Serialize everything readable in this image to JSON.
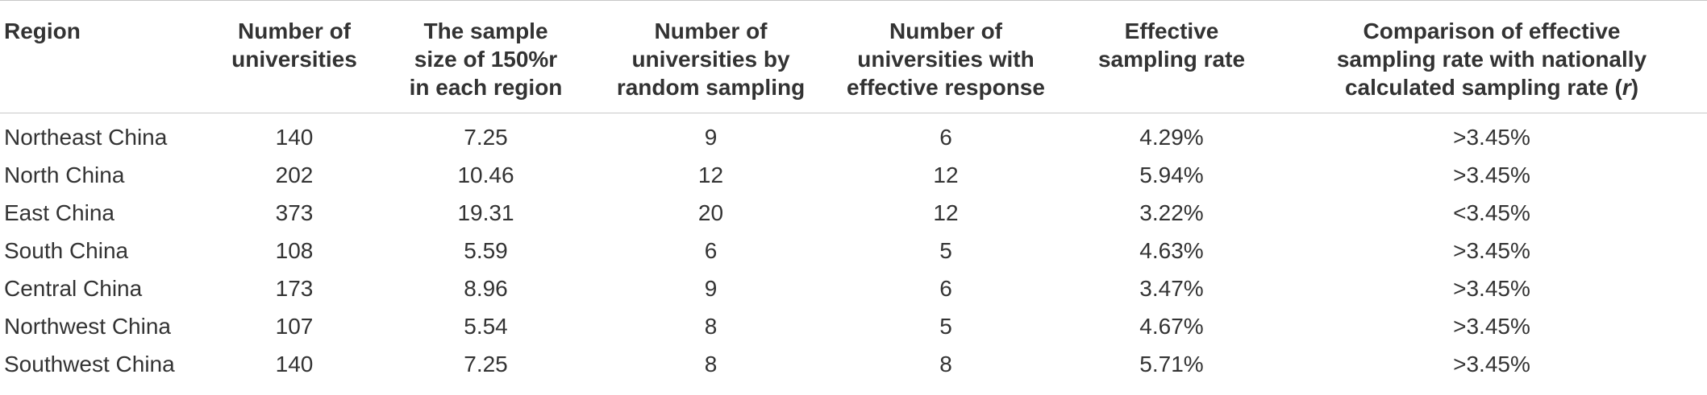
{
  "table": {
    "headers": {
      "region": "Region",
      "num_universities": [
        "Number of",
        "universities"
      ],
      "sample_size": [
        "The sample",
        "size of 150%r",
        "in each region"
      ],
      "random_sampling": [
        "Number of",
        "universities by",
        "random sampling"
      ],
      "effective_response": [
        "Number of",
        "universities with",
        "effective response"
      ],
      "effective_rate": [
        "Effective",
        "sampling rate"
      ],
      "comparison": [
        "Comparison of effective",
        "sampling rate with nationally",
        "calculated sampling rate ("
      ],
      "comparison_r": "r",
      "comparison_close": ")"
    },
    "rows": [
      {
        "region": "Northeast China",
        "universities": "140",
        "sample_size": "7.25",
        "random": "9",
        "effective": "6",
        "rate": "4.29%",
        "comparison": ">3.45%"
      },
      {
        "region": "North China",
        "universities": "202",
        "sample_size": "10.46",
        "random": "12",
        "effective": "12",
        "rate": "5.94%",
        "comparison": ">3.45%"
      },
      {
        "region": "East China",
        "universities": "373",
        "sample_size": "19.31",
        "random": "20",
        "effective": "12",
        "rate": "3.22%",
        "comparison": "<3.45%"
      },
      {
        "region": "South China",
        "universities": "108",
        "sample_size": "5.59",
        "random": "6",
        "effective": "5",
        "rate": "4.63%",
        "comparison": ">3.45%"
      },
      {
        "region": "Central China",
        "universities": "173",
        "sample_size": "8.96",
        "random": "9",
        "effective": "6",
        "rate": "3.47%",
        "comparison": ">3.45%"
      },
      {
        "region": "Northwest China",
        "universities": "107",
        "sample_size": "5.54",
        "random": "8",
        "effective": "5",
        "rate": "4.67%",
        "comparison": ">3.45%"
      },
      {
        "region": "Southwest China",
        "universities": "140",
        "sample_size": "7.25",
        "random": "8",
        "effective": "8",
        "rate": "5.71%",
        "comparison": ">3.45%"
      }
    ]
  }
}
